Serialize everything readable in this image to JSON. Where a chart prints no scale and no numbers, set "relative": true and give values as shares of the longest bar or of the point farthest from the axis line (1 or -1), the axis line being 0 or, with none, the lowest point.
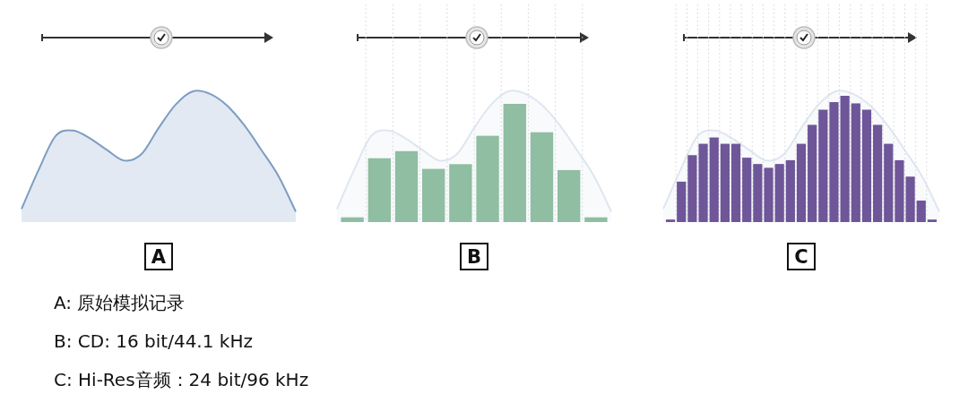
{
  "chart_data": [
    {
      "type": "area",
      "title": "A",
      "relative": true,
      "color": "#7d9dc2",
      "categories": [
        null,
        null,
        null,
        null,
        null,
        null,
        null,
        null,
        null,
        null,
        null,
        null,
        null,
        null,
        null,
        null,
        null
      ],
      "values": [
        0.1,
        0.4,
        0.66,
        0.7,
        0.64,
        0.55,
        0.47,
        0.52,
        0.72,
        0.9,
        1.0,
        0.98,
        0.89,
        0.74,
        0.55,
        0.35,
        0.08
      ],
      "annotations": [
        "A: 原始模拟记录"
      ]
    },
    {
      "type": "area",
      "relative": true,
      "color": "#dfe6f1",
      "categories": [
        null,
        null,
        null,
        null,
        null,
        null,
        null,
        null,
        null,
        null,
        null,
        null,
        null,
        null,
        null,
        null,
        null
      ],
      "values": [
        0.1,
        0.4,
        0.66,
        0.7,
        0.64,
        0.55,
        0.47,
        0.52,
        0.72,
        0.9,
        1.0,
        0.98,
        0.89,
        0.74,
        0.55,
        0.35,
        0.08
      ]
    },
    {
      "type": "bar",
      "title": "B",
      "relative": true,
      "grid": "x",
      "color": "#8fbea2",
      "categories": [
        null,
        null,
        null,
        null,
        null,
        null,
        null,
        null,
        null,
        null
      ],
      "values": [
        0.04,
        0.54,
        0.6,
        0.45,
        0.49,
        0.73,
        1.0,
        0.76,
        0.44,
        0.04
      ],
      "annotations": [
        "B: CD: 16 bit/44.1 kHz"
      ]
    },
    {
      "type": "area",
      "relative": true,
      "color": "#dfe6f1",
      "categories": [
        null,
        null,
        null,
        null,
        null,
        null,
        null,
        null,
        null,
        null,
        null,
        null,
        null,
        null,
        null,
        null,
        null
      ],
      "values": [
        0.1,
        0.4,
        0.66,
        0.7,
        0.64,
        0.55,
        0.47,
        0.52,
        0.72,
        0.9,
        1.0,
        0.98,
        0.89,
        0.74,
        0.55,
        0.35,
        0.08
      ]
    },
    {
      "type": "bar",
      "title": "C",
      "relative": true,
      "grid": "x",
      "color": "#6e5699",
      "categories": [
        null,
        null,
        null,
        null,
        null,
        null,
        null,
        null,
        null,
        null,
        null,
        null,
        null,
        null,
        null,
        null,
        null,
        null,
        null,
        null,
        null,
        null,
        null,
        null,
        null
      ],
      "values": [
        0.02,
        0.32,
        0.53,
        0.62,
        0.67,
        0.62,
        0.62,
        0.51,
        0.46,
        0.43,
        0.46,
        0.49,
        0.62,
        0.77,
        0.89,
        0.95,
        1.0,
        0.94,
        0.89,
        0.77,
        0.62,
        0.49,
        0.36,
        0.17,
        0.02
      ],
      "annotations": [
        "C: Hi-Res音频：24 bit/96 kHz"
      ]
    }
  ]
}
